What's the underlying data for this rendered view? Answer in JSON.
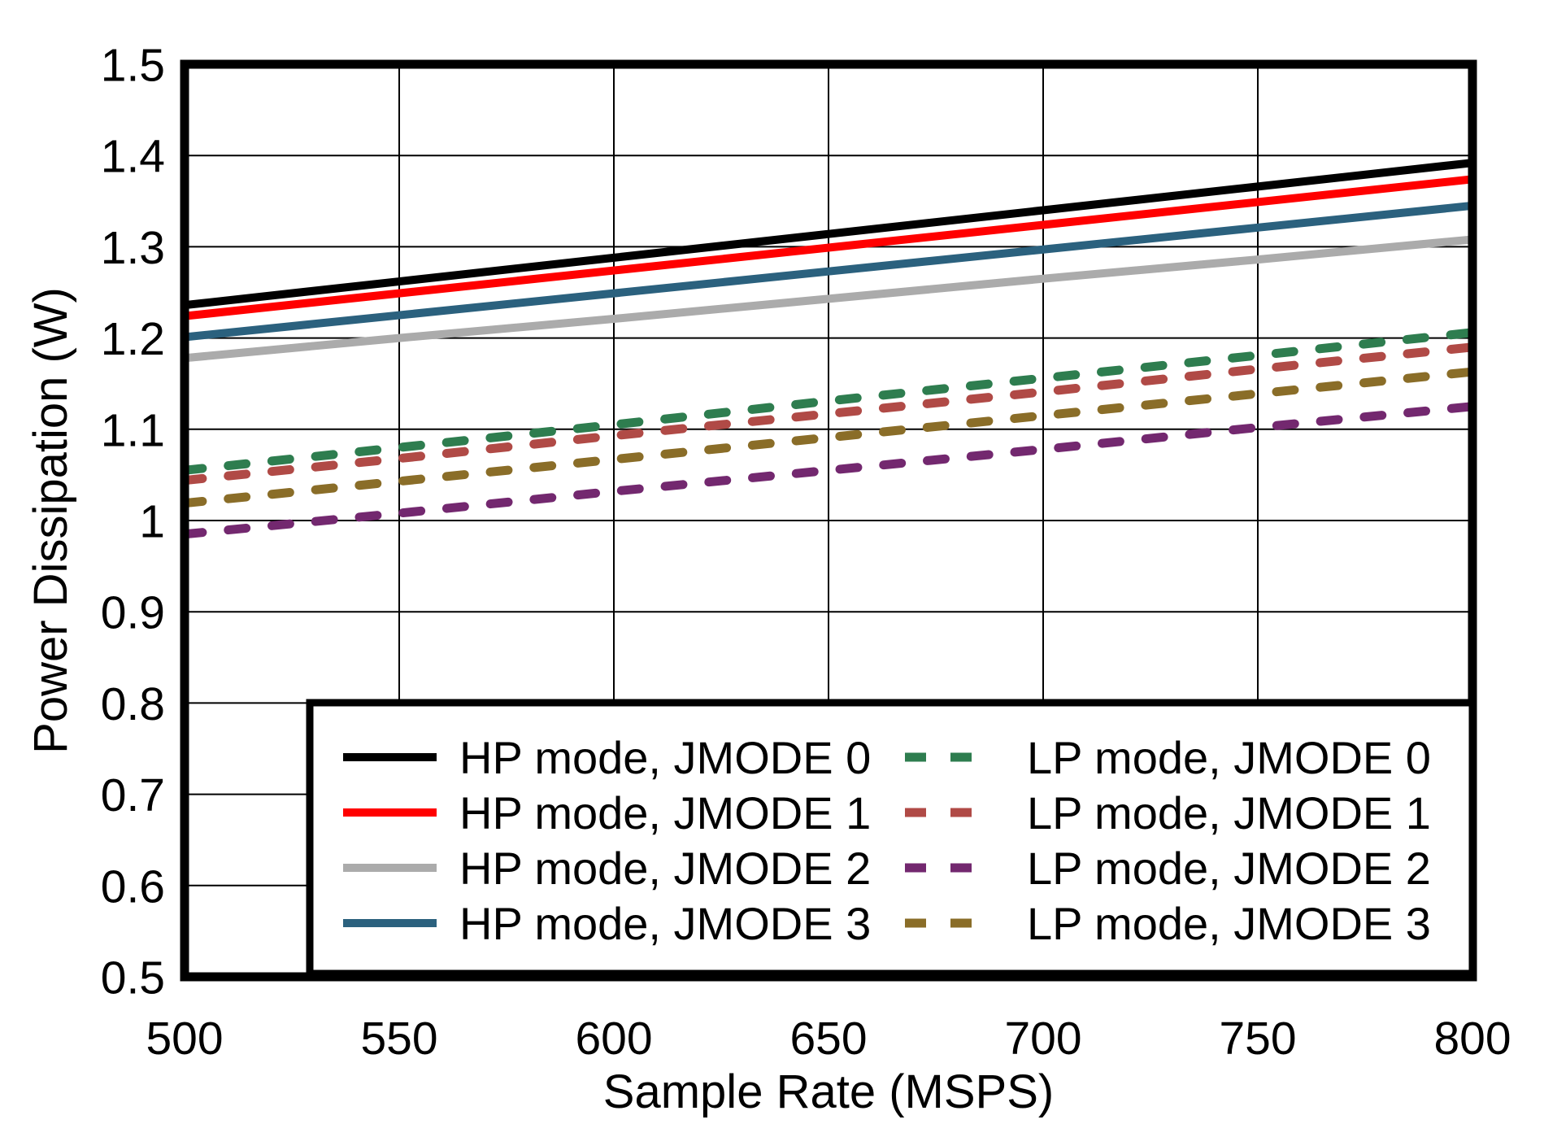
{
  "figure": {
    "background": "#ffffff",
    "border_color": "#000000",
    "grid_color": "#000000"
  },
  "chart_data": {
    "type": "line",
    "title": "",
    "xlabel": "Sample Rate (MSPS)",
    "ylabel": "Power Dissipation (W)",
    "xlim": [
      500,
      800
    ],
    "ylim": [
      0.5,
      1.5
    ],
    "xtick_values": [
      500,
      550,
      600,
      650,
      700,
      750,
      800
    ],
    "xtick_labels": [
      "500",
      "550",
      "600",
      "650",
      "700",
      "750",
      "800"
    ],
    "ytick_values": [
      1.5,
      1.4,
      1.3,
      1.2,
      1.1,
      1.0,
      0.9,
      0.8,
      0.7,
      0.6,
      0.5
    ],
    "ytick_labels": [
      "1.5",
      "1.4",
      "1.3",
      "1.2",
      "1.1",
      "1",
      "0.9",
      "0.8",
      "0.7",
      "0.6",
      "0.5"
    ],
    "grid": true,
    "legend_position": "inside-bottom-right",
    "x": [
      500,
      550,
      600,
      650,
      700,
      750,
      800
    ],
    "series": [
      {
        "name": "HP mode, JMODE 0",
        "color": "#000000",
        "style": "solid",
        "values": [
          1.236,
          1.262,
          1.288,
          1.314,
          1.34,
          1.366,
          1.392
        ]
      },
      {
        "name": "HP mode, JMODE 1",
        "color": "#ff0000",
        "style": "solid",
        "values": [
          1.224,
          1.249,
          1.274,
          1.299,
          1.324,
          1.349,
          1.374
        ]
      },
      {
        "name": "HP mode, JMODE 2",
        "color": "#ababab",
        "style": "solid",
        "values": [
          1.178,
          1.2,
          1.221,
          1.243,
          1.265,
          1.286,
          1.308
        ]
      },
      {
        "name": "HP mode, JMODE 3",
        "color": "#2b617e",
        "style": "solid",
        "values": [
          1.201,
          1.225,
          1.249,
          1.273,
          1.297,
          1.321,
          1.345
        ]
      },
      {
        "name": "LP mode, JMODE 0",
        "color": "#2e7d4f",
        "style": "dashed",
        "values": [
          1.055,
          1.08,
          1.105,
          1.131,
          1.156,
          1.181,
          1.206
        ]
      },
      {
        "name": "LP mode, JMODE 1",
        "color": "#b04a46",
        "style": "dashed",
        "values": [
          1.044,
          1.068,
          1.093,
          1.117,
          1.141,
          1.166,
          1.19
        ]
      },
      {
        "name": "LP mode, JMODE 2",
        "color": "#73286f",
        "style": "dashed",
        "values": [
          0.985,
          1.008,
          1.032,
          1.055,
          1.078,
          1.102,
          1.125
        ]
      },
      {
        "name": "LP mode, JMODE 3",
        "color": "#8a6d28",
        "style": "dashed",
        "values": [
          1.019,
          1.043,
          1.067,
          1.091,
          1.115,
          1.139,
          1.163
        ]
      }
    ],
    "legend_columns": [
      {
        "series_indexes": [
          0,
          1,
          2,
          3
        ]
      },
      {
        "series_indexes": [
          4,
          5,
          6,
          7
        ]
      }
    ]
  }
}
